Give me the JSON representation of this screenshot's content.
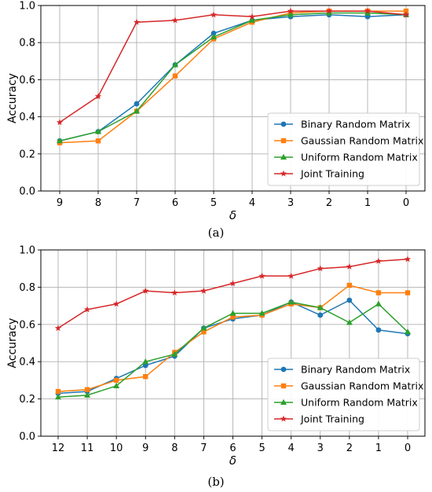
{
  "series_colors": [
    "#1f77b4",
    "#ff7f0e",
    "#2ca02c",
    "#d62728"
  ],
  "series_markers": [
    "circle",
    "square",
    "triangle",
    "star"
  ],
  "captions": [
    "(a)",
    "(b)"
  ],
  "chart_data": [
    {
      "type": "line",
      "xlabel": "δ",
      "ylabel": "Accuracy",
      "categories": [
        "9",
        "8",
        "7",
        "6",
        "5",
        "4",
        "3",
        "2",
        "1",
        "0"
      ],
      "ylim": [
        0,
        1.0
      ],
      "yticks": [
        "0.0",
        "0.2",
        "0.4",
        "0.6",
        "0.8",
        "1.0"
      ],
      "grid": true,
      "legend_position": "bottom-right",
      "series": [
        {
          "name": "Binary Random Matrix",
          "values": [
            0.27,
            0.32,
            0.47,
            0.68,
            0.85,
            0.92,
            0.94,
            0.95,
            0.94,
            0.95
          ]
        },
        {
          "name": "Gaussian Random Matrix",
          "values": [
            0.26,
            0.27,
            0.43,
            0.62,
            0.82,
            0.91,
            0.96,
            0.97,
            0.97,
            0.97
          ]
        },
        {
          "name": "Uniform Random Matrix",
          "values": [
            0.27,
            0.32,
            0.43,
            0.68,
            0.83,
            0.92,
            0.95,
            0.96,
            0.96,
            0.95
          ]
        },
        {
          "name": "Joint Training",
          "values": [
            0.37,
            0.51,
            0.91,
            0.92,
            0.95,
            0.94,
            0.97,
            0.97,
            0.97,
            0.95
          ]
        }
      ]
    },
    {
      "type": "line",
      "xlabel": "δ",
      "ylabel": "Accuracy",
      "categories": [
        "12",
        "11",
        "10",
        "9",
        "8",
        "7",
        "6",
        "5",
        "4",
        "3",
        "2",
        "1",
        "0"
      ],
      "ylim": [
        0,
        1.0
      ],
      "yticks": [
        "0.0",
        "0.2",
        "0.4",
        "0.6",
        "0.8",
        "1.0"
      ],
      "grid": true,
      "legend_position": "bottom-right",
      "series": [
        {
          "name": "Binary Random Matrix",
          "values": [
            0.23,
            0.24,
            0.31,
            0.38,
            0.43,
            0.58,
            0.63,
            0.65,
            0.72,
            0.65,
            0.73,
            0.57,
            0.55
          ]
        },
        {
          "name": "Gaussian Random Matrix",
          "values": [
            0.24,
            0.25,
            0.3,
            0.32,
            0.45,
            0.56,
            0.64,
            0.65,
            0.71,
            0.69,
            0.81,
            0.77,
            0.77
          ]
        },
        {
          "name": "Uniform Random Matrix",
          "values": [
            0.21,
            0.22,
            0.27,
            0.4,
            0.44,
            0.58,
            0.66,
            0.66,
            0.72,
            0.69,
            0.61,
            0.71,
            0.56
          ]
        },
        {
          "name": "Joint Training",
          "values": [
            0.58,
            0.68,
            0.71,
            0.78,
            0.77,
            0.78,
            0.82,
            0.86,
            0.86,
            0.9,
            0.91,
            0.94,
            0.95
          ]
        }
      ]
    }
  ]
}
